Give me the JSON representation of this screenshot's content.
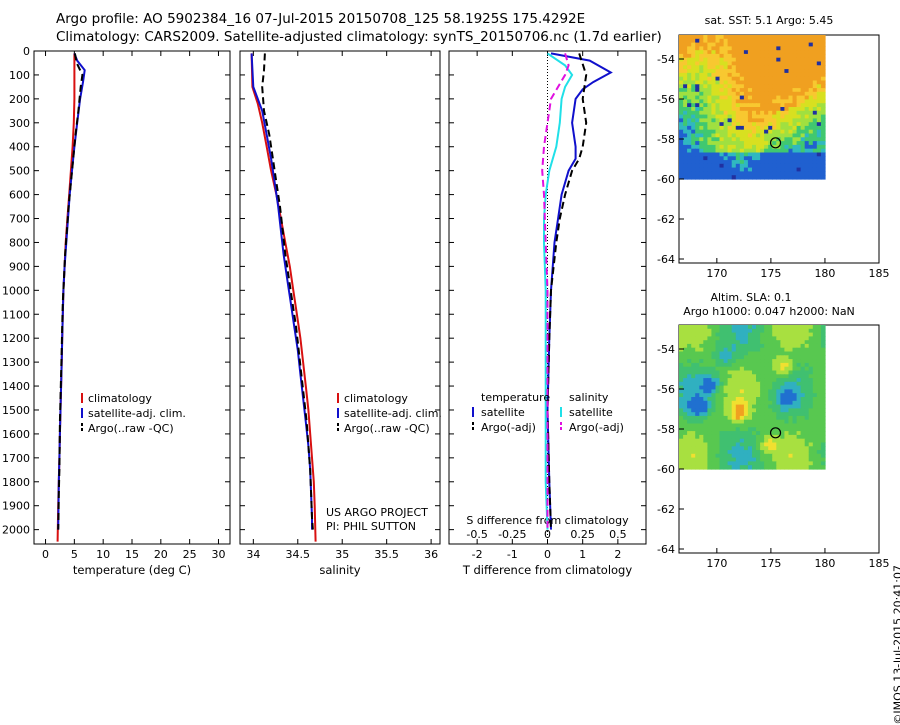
{
  "figure": {
    "title_line1": "Argo profile: AO 5902384_16 07-Jul-2015 20150708_125 58.1925S 175.4292E",
    "title_line2": "Climatology: CARS2009. Satellite-adjusted climatology: synTS_20150706.nc (1.7d earlier)",
    "credit": "©IMOS 13-Jul-2015 20:41:07"
  },
  "colors": {
    "climatology": "#d81010",
    "satellite": "#1010cc",
    "argo": "#000000",
    "sat_salinity": "#20e0e8",
    "argo_salinity": "#e010e0"
  },
  "chart_data": [
    {
      "id": "temperature",
      "type": "line",
      "xlabel": "temperature (deg C)",
      "ylabel": "",
      "xlim": [
        -2,
        32
      ],
      "ylim": [
        2060,
        0
      ],
      "xticks": [
        0,
        5,
        10,
        15,
        20,
        25,
        30
      ],
      "yticks": [
        0,
        100,
        200,
        300,
        400,
        500,
        600,
        700,
        800,
        900,
        1000,
        1100,
        1200,
        1300,
        1400,
        1500,
        1600,
        1700,
        1800,
        1900,
        2000
      ],
      "legend": {
        "position": "center",
        "entries": [
          "climatology",
          "satellite-adj. clim.",
          "Argo(..raw -QC)"
        ]
      },
      "series": [
        {
          "name": "climatology",
          "style": "solid",
          "color_key": "climatology",
          "points": [
            [
              5,
              10
            ],
            [
              5,
              100
            ],
            [
              5,
              200
            ],
            [
              4.9,
              300
            ],
            [
              4.7,
              400
            ],
            [
              4.4,
              500
            ],
            [
              4.1,
              600
            ],
            [
              3.8,
              700
            ],
            [
              3.5,
              800
            ],
            [
              3.3,
              900
            ],
            [
              3.1,
              1000
            ],
            [
              3,
              1100
            ],
            [
              2.9,
              1200
            ],
            [
              2.8,
              1300
            ],
            [
              2.7,
              1400
            ],
            [
              2.6,
              1500
            ],
            [
              2.5,
              1600
            ],
            [
              2.4,
              1700
            ],
            [
              2.3,
              1800
            ],
            [
              2.2,
              1900
            ],
            [
              2.1,
              2050
            ]
          ]
        },
        {
          "name": "satellite-adj. clim.",
          "style": "solid",
          "color_key": "satellite",
          "points": [
            [
              5,
              10
            ],
            [
              5.5,
              40
            ],
            [
              6.8,
              80
            ],
            [
              6.5,
              130
            ],
            [
              6,
              200
            ],
            [
              5.5,
              300
            ],
            [
              5,
              400
            ],
            [
              4.6,
              500
            ],
            [
              4.2,
              600
            ],
            [
              3.9,
              700
            ],
            [
              3.6,
              800
            ],
            [
              3.3,
              900
            ],
            [
              3.1,
              1000
            ],
            [
              3,
              1100
            ],
            [
              2.9,
              1200
            ],
            [
              2.8,
              1300
            ],
            [
              2.7,
              1400
            ],
            [
              2.6,
              1500
            ],
            [
              2.5,
              1600
            ],
            [
              2.4,
              1700
            ],
            [
              2.3,
              1800
            ],
            [
              2.25,
              1900
            ],
            [
              2.2,
              2000
            ]
          ]
        },
        {
          "name": "Argo(..raw -QC)",
          "style": "dashed",
          "color_key": "argo",
          "points": [
            [
              5.1,
              10
            ],
            [
              5.4,
              50
            ],
            [
              6.4,
              100
            ],
            [
              6.1,
              150
            ],
            [
              5.7,
              250
            ],
            [
              5.2,
              350
            ],
            [
              4.8,
              450
            ],
            [
              4.4,
              550
            ],
            [
              4,
              650
            ],
            [
              3.7,
              750
            ],
            [
              3.4,
              850
            ],
            [
              3.2,
              950
            ],
            [
              3,
              1050
            ],
            [
              2.9,
              1150
            ],
            [
              2.8,
              1250
            ],
            [
              2.7,
              1350
            ],
            [
              2.6,
              1450
            ],
            [
              2.5,
              1550
            ],
            [
              2.45,
              1650
            ],
            [
              2.4,
              1750
            ],
            [
              2.3,
              1850
            ],
            [
              2.25,
              1950
            ],
            [
              2.2,
              2000
            ]
          ]
        }
      ]
    },
    {
      "id": "salinity",
      "type": "line",
      "xlabel": "salinity",
      "ylabel": "",
      "xlim": [
        33.85,
        36.1
      ],
      "ylim": [
        2060,
        0
      ],
      "xticks": [
        34,
        34.5,
        35,
        35.5,
        36
      ],
      "xticklabels": [
        "34",
        "34.5",
        "35",
        "35.5",
        "36"
      ],
      "legend": {
        "position": "center",
        "entries": [
          "climatology",
          "satellite-adj. clim.",
          "Argo(..raw -QC)"
        ]
      },
      "annotation": [
        "US ARGO PROJECT",
        "PI: PHIL SUTTON"
      ],
      "series": [
        {
          "name": "climatology",
          "style": "solid",
          "color_key": "climatology",
          "points": [
            [
              33.98,
              10
            ],
            [
              33.99,
              150
            ],
            [
              34.05,
              220
            ],
            [
              34.1,
              300
            ],
            [
              34.15,
              400
            ],
            [
              34.2,
              500
            ],
            [
              34.26,
              600
            ],
            [
              34.31,
              700
            ],
            [
              34.36,
              800
            ],
            [
              34.41,
              900
            ],
            [
              34.45,
              1000
            ],
            [
              34.49,
              1100
            ],
            [
              34.53,
              1200
            ],
            [
              34.56,
              1300
            ],
            [
              34.59,
              1400
            ],
            [
              34.62,
              1500
            ],
            [
              34.64,
              1600
            ],
            [
              34.66,
              1700
            ],
            [
              34.68,
              1800
            ],
            [
              34.69,
              1900
            ],
            [
              34.7,
              2050
            ]
          ]
        },
        {
          "name": "satellite-adj. clim.",
          "style": "solid",
          "color_key": "satellite",
          "points": [
            [
              33.98,
              10
            ],
            [
              34,
              150
            ],
            [
              34.1,
              250
            ],
            [
              34.15,
              350
            ],
            [
              34.2,
              450
            ],
            [
              34.24,
              550
            ],
            [
              34.28,
              650
            ],
            [
              34.31,
              750
            ],
            [
              34.34,
              850
            ],
            [
              34.38,
              950
            ],
            [
              34.42,
              1050
            ],
            [
              34.46,
              1150
            ],
            [
              34.5,
              1250
            ],
            [
              34.53,
              1350
            ],
            [
              34.56,
              1450
            ],
            [
              34.59,
              1550
            ],
            [
              34.62,
              1650
            ],
            [
              34.64,
              1750
            ],
            [
              34.65,
              1850
            ],
            [
              34.66,
              1950
            ],
            [
              34.66,
              2000
            ]
          ]
        },
        {
          "name": "Argo(..raw -QC)",
          "style": "dashed",
          "color_key": "argo",
          "points": [
            [
              34.13,
              10
            ],
            [
              34.12,
              80
            ],
            [
              34.1,
              150
            ],
            [
              34.12,
              250
            ],
            [
              34.18,
              350
            ],
            [
              34.22,
              450
            ],
            [
              34.26,
              550
            ],
            [
              34.3,
              650
            ],
            [
              34.33,
              750
            ],
            [
              34.36,
              850
            ],
            [
              34.4,
              950
            ],
            [
              34.44,
              1050
            ],
            [
              34.48,
              1150
            ],
            [
              34.51,
              1250
            ],
            [
              34.54,
              1350
            ],
            [
              34.57,
              1450
            ],
            [
              34.6,
              1550
            ],
            [
              34.62,
              1650
            ],
            [
              34.64,
              1750
            ],
            [
              34.65,
              1850
            ],
            [
              34.66,
              1950
            ],
            [
              34.67,
              2000
            ]
          ]
        }
      ]
    },
    {
      "id": "difference",
      "type": "line",
      "xlabel": "T difference from climatology",
      "x2label": "S difference from climatology",
      "xlim": [
        -2.8,
        2.8
      ],
      "ylim": [
        2060,
        0
      ],
      "xticks": [
        -2,
        -1,
        0,
        1,
        2
      ],
      "x2ticks": [
        -0.5,
        -0.25,
        0,
        0.25,
        0.5
      ],
      "x2ticklabels": [
        "-0.5",
        "-0.25",
        "0",
        "0.25",
        "0.5"
      ],
      "legend": {
        "position": "bottom",
        "groups": [
          {
            "title": "temperature",
            "entries": [
              "satellite",
              "Argo(-adj)"
            ]
          },
          {
            "title": "salinity",
            "entries": [
              "satellite",
              "Argo(-adj)"
            ]
          }
        ]
      },
      "series": [
        {
          "name": "temperature satellite",
          "style": "solid",
          "color_key": "satellite",
          "points": [
            [
              0.1,
              10
            ],
            [
              1.2,
              40
            ],
            [
              1.8,
              90
            ],
            [
              1.3,
              130
            ],
            [
              1.0,
              160
            ],
            [
              0.8,
              200
            ],
            [
              0.7,
              300
            ],
            [
              0.8,
              400
            ],
            [
              0.8,
              450
            ],
            [
              0.6,
              500
            ],
            [
              0.5,
              550
            ],
            [
              0.4,
              600
            ],
            [
              0.3,
              700
            ],
            [
              0.2,
              800
            ],
            [
              0.1,
              1000
            ],
            [
              0.05,
              1200
            ],
            [
              0,
              1500
            ],
            [
              0.05,
              1800
            ],
            [
              0.1,
              2000
            ]
          ]
        },
        {
          "name": "temperature Argo(-adj)",
          "style": "dashed",
          "color_key": "argo",
          "points": [
            [
              0.9,
              10
            ],
            [
              1.1,
              100
            ],
            [
              1.0,
              200
            ],
            [
              1.1,
              300
            ],
            [
              1.0,
              400
            ],
            [
              0.9,
              450
            ],
            [
              0.7,
              500
            ],
            [
              0.6,
              550
            ],
            [
              0.5,
              600
            ],
            [
              0.35,
              700
            ],
            [
              0.25,
              800
            ],
            [
              0.1,
              1000
            ],
            [
              0.05,
              1200
            ],
            [
              0,
              1500
            ],
            [
              0.05,
              1800
            ],
            [
              0.1,
              2000
            ]
          ]
        },
        {
          "name": "salinity satellite",
          "style": "solid",
          "color_key": "sat_salinity",
          "points": [
            [
              0,
              10
            ],
            [
              0.5,
              60
            ],
            [
              0.7,
              100
            ],
            [
              0.5,
              150
            ],
            [
              0.4,
              200
            ],
            [
              0.35,
              300
            ],
            [
              0.25,
              400
            ],
            [
              0.05,
              500
            ],
            [
              -0.05,
              600
            ],
            [
              -0.1,
              700
            ],
            [
              -0.1,
              800
            ],
            [
              -0.05,
              1000
            ],
            [
              -0.05,
              1200
            ],
            [
              -0.05,
              1500
            ],
            [
              -0.05,
              1800
            ],
            [
              0,
              2000
            ]
          ]
        },
        {
          "name": "salinity Argo(-adj)",
          "style": "dashed",
          "color_key": "argo_salinity",
          "points": [
            [
              0.5,
              10
            ],
            [
              0.6,
              60
            ],
            [
              0.5,
              100
            ],
            [
              0.1,
              200
            ],
            [
              0,
              300
            ],
            [
              -0.1,
              400
            ],
            [
              -0.15,
              500
            ],
            [
              -0.1,
              600
            ],
            [
              -0.05,
              800
            ],
            [
              0,
              1000
            ],
            [
              0,
              1200
            ],
            [
              0,
              1500
            ],
            [
              0,
              1800
            ],
            [
              0,
              2000
            ]
          ]
        }
      ]
    },
    {
      "id": "sst_map",
      "type": "heatmap",
      "title": "sat. SST: 5.1  Argo: 5.45",
      "xlim": [
        166.5,
        185
      ],
      "ylim": [
        -64.2,
        -52.8
      ],
      "xticks": [
        170,
        175,
        180,
        185
      ],
      "yticks": [
        -54,
        -56,
        -58,
        -60,
        -62,
        -64
      ],
      "data_extent": {
        "lon": [
          166.5,
          180
        ],
        "lat": [
          -60,
          -52.8
        ]
      },
      "marker": {
        "lon": 175.43,
        "lat": -58.19
      }
    },
    {
      "id": "sla_map",
      "type": "heatmap",
      "title_line1": "Altim. SLA: 0.1",
      "title_line2": "Argo h1000: 0.047 h2000: NaN",
      "xlim": [
        166.5,
        185
      ],
      "ylim": [
        -64.2,
        -52.8
      ],
      "xticks": [
        170,
        175,
        180,
        185
      ],
      "yticks": [
        -54,
        -56,
        -58,
        -60,
        -62,
        -64
      ],
      "data_extent": {
        "lon": [
          166.5,
          180
        ],
        "lat": [
          -60,
          -52.8
        ]
      },
      "marker": {
        "lon": 175.43,
        "lat": -58.19
      }
    }
  ]
}
